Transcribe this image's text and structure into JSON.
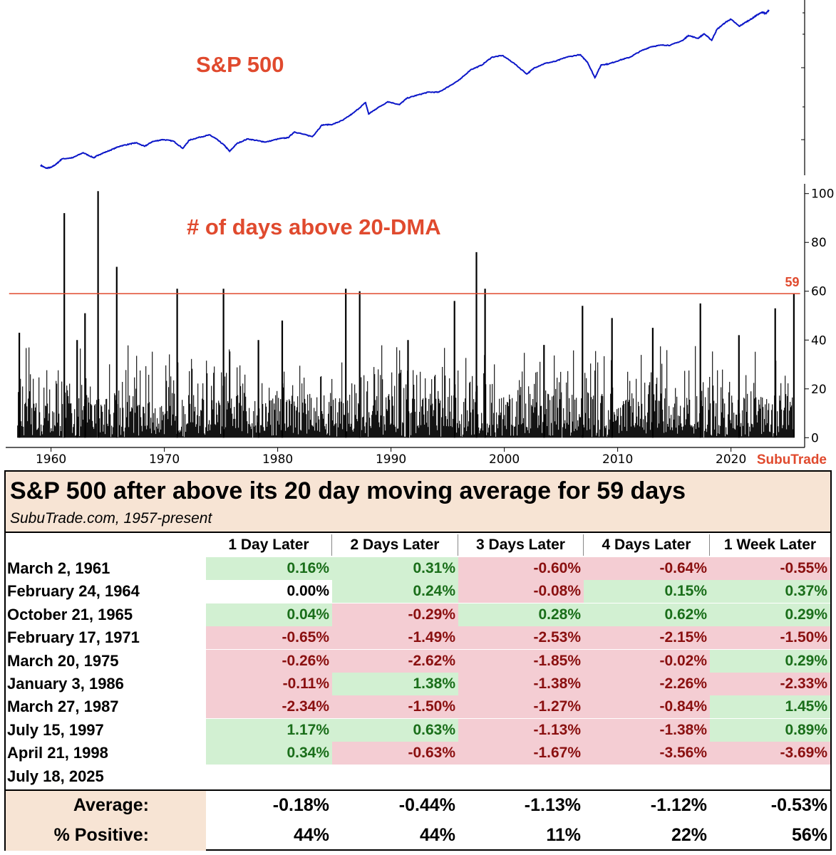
{
  "chart_data": [
    {
      "type": "line",
      "title": "S&P 500",
      "xlabel": "",
      "ylabel": "",
      "xlim": [
        1957,
        2025.6
      ],
      "yscale": "log",
      "color": "#0b16c8",
      "title_color": "#e04a2e",
      "x": [
        1957.0,
        1957.5,
        1958.0,
        1958.5,
        1959.0,
        1960.0,
        1961.0,
        1962.0,
        1962.5,
        1963.5,
        1964.5,
        1965.5,
        1966.0,
        1966.8,
        1967.5,
        1968.5,
        1969.5,
        1970.4,
        1971.0,
        1972.0,
        1972.9,
        1973.5,
        1974.3,
        1974.8,
        1975.5,
        1976.5,
        1977.5,
        1978.2,
        1979.5,
        1980.3,
        1980.9,
        1981.8,
        1982.6,
        1983.5,
        1984.5,
        1985.5,
        1986.5,
        1987.6,
        1987.9,
        1988.5,
        1989.7,
        1990.8,
        1991.5,
        1992.5,
        1993.5,
        1994.5,
        1995.5,
        1996.5,
        1997.5,
        1998.5,
        1999.5,
        2000.5,
        2001.5,
        2002.8,
        2003.5,
        2004.5,
        2005.5,
        2006.5,
        2007.8,
        2008.5,
        2009.2,
        2009.8,
        2010.5,
        2011.5,
        2012.5,
        2013.5,
        2014.5,
        2015.5,
        2016.3,
        2017.5,
        2018.0,
        2018.9,
        2019.5,
        2020.2,
        2020.7,
        2021.5,
        2022.0,
        2022.8,
        2023.5,
        2024.0,
        2024.5,
        2025.0,
        2025.3,
        2025.6
      ],
      "values": [
        45,
        41,
        42,
        47,
        55,
        57,
        67,
        57,
        63,
        72,
        83,
        89,
        92,
        82,
        95,
        102,
        97,
        77,
        100,
        110,
        118,
        105,
        85,
        70,
        90,
        104,
        98,
        94,
        105,
        108,
        130,
        120,
        112,
        162,
        165,
        190,
        240,
        330,
        230,
        265,
        340,
        310,
        380,
        420,
        460,
        460,
        560,
        690,
        940,
        1080,
        1400,
        1480,
        1180,
        820,
        1000,
        1150,
        1230,
        1400,
        1520,
        1200,
        730,
        1100,
        1130,
        1270,
        1400,
        1700,
        1960,
        2060,
        2050,
        2400,
        2800,
        2550,
        2950,
        2400,
        3400,
        4250,
        4700,
        3750,
        4350,
        4800,
        5400,
        5900,
        5600,
        6300
      ]
    },
    {
      "type": "bar",
      "title": "# of days above 20-DMA",
      "title_color": "#e04a2e",
      "xlabel": "",
      "ylabel": "",
      "xlim": [
        1956.0,
        2026.5
      ],
      "ylim": [
        -4,
        104
      ],
      "yticks": [
        0,
        20,
        40,
        60,
        80,
        100
      ],
      "xticks": [
        1960,
        1970,
        1980,
        1990,
        2000,
        2010,
        2020
      ],
      "threshold": {
        "value": 59,
        "label": "59",
        "color": "#e04a2e"
      },
      "watermark": "SubuTrade",
      "grid": false,
      "peaks": [
        {
          "x": 1957.2,
          "y": 43
        },
        {
          "x": 1961.17,
          "y": 92
        },
        {
          "x": 1962.3,
          "y": 40
        },
        {
          "x": 1963.0,
          "y": 51
        },
        {
          "x": 1964.15,
          "y": 101
        },
        {
          "x": 1965.8,
          "y": 70
        },
        {
          "x": 1971.13,
          "y": 61
        },
        {
          "x": 1975.22,
          "y": 61
        },
        {
          "x": 1978.3,
          "y": 40
        },
        {
          "x": 1980.4,
          "y": 48
        },
        {
          "x": 1986.01,
          "y": 61
        },
        {
          "x": 1987.24,
          "y": 60
        },
        {
          "x": 1991.5,
          "y": 40
        },
        {
          "x": 1995.6,
          "y": 56
        },
        {
          "x": 1997.54,
          "y": 76
        },
        {
          "x": 1998.3,
          "y": 61
        },
        {
          "x": 2003.5,
          "y": 38
        },
        {
          "x": 2006.9,
          "y": 54
        },
        {
          "x": 2009.5,
          "y": 49
        },
        {
          "x": 2013.1,
          "y": 45
        },
        {
          "x": 2017.3,
          "y": 55
        },
        {
          "x": 2020.7,
          "y": 42
        },
        {
          "x": 2023.9,
          "y": 53
        },
        {
          "x": 2025.55,
          "y": 59
        }
      ]
    }
  ],
  "table": {
    "title": "S&P 500 after above its 20 day moving average for 59 days",
    "subtitle": "SubuTrade.com, 1957-present",
    "columns": [
      "1 Day Later",
      "2 Days Later",
      "3 Days Later",
      "4 Days Later",
      "1 Week Later"
    ],
    "rows": [
      {
        "date": "March 2, 1961",
        "values": [
          "0.16%",
          "0.31%",
          "-0.60%",
          "-0.64%",
          "-0.55%"
        ],
        "signs": [
          "pos",
          "pos",
          "neg",
          "neg",
          "neg"
        ]
      },
      {
        "date": "February 24, 1964",
        "values": [
          "0.00%",
          "0.24%",
          "-0.08%",
          "0.15%",
          "0.37%"
        ],
        "signs": [
          "zero",
          "pos",
          "neg",
          "pos",
          "pos"
        ]
      },
      {
        "date": "October 21, 1965",
        "values": [
          "0.04%",
          "-0.29%",
          "0.28%",
          "0.62%",
          "0.29%"
        ],
        "signs": [
          "pos",
          "neg",
          "pos",
          "pos",
          "pos"
        ]
      },
      {
        "date": "February 17, 1971",
        "values": [
          "-0.65%",
          "-1.49%",
          "-2.53%",
          "-2.15%",
          "-1.50%"
        ],
        "signs": [
          "neg",
          "neg",
          "neg",
          "neg",
          "neg"
        ]
      },
      {
        "date": "March 20, 1975",
        "values": [
          "-0.26%",
          "-2.62%",
          "-1.85%",
          "-0.02%",
          "0.29%"
        ],
        "signs": [
          "neg",
          "neg",
          "neg",
          "neg",
          "pos"
        ]
      },
      {
        "date": "January 3, 1986",
        "values": [
          "-0.11%",
          "1.38%",
          "-1.38%",
          "-2.26%",
          "-2.33%"
        ],
        "signs": [
          "neg",
          "pos",
          "neg",
          "neg",
          "neg"
        ]
      },
      {
        "date": "March 27, 1987",
        "values": [
          "-2.34%",
          "-1.50%",
          "-1.27%",
          "-0.84%",
          "1.45%"
        ],
        "signs": [
          "neg",
          "neg",
          "neg",
          "neg",
          "pos"
        ]
      },
      {
        "date": "July 15, 1997",
        "values": [
          "1.17%",
          "0.63%",
          "-1.13%",
          "-1.38%",
          "0.89%"
        ],
        "signs": [
          "pos",
          "pos",
          "neg",
          "neg",
          "pos"
        ]
      },
      {
        "date": "April 21, 1998",
        "values": [
          "0.34%",
          "-0.63%",
          "-1.67%",
          "-3.56%",
          "-3.69%"
        ],
        "signs": [
          "pos",
          "neg",
          "neg",
          "neg",
          "neg"
        ]
      },
      {
        "date": "July 18, 2025",
        "values": [
          "",
          "",
          "",
          "",
          ""
        ],
        "signs": [
          "none",
          "none",
          "none",
          "none",
          "none"
        ]
      }
    ],
    "average_label": "Average:",
    "average": [
      "-0.18%",
      "-0.44%",
      "-1.13%",
      "-1.12%",
      "-0.53%"
    ],
    "positive_label": "% Positive:",
    "positive": [
      "44%",
      "44%",
      "11%",
      "22%",
      "56%"
    ]
  }
}
